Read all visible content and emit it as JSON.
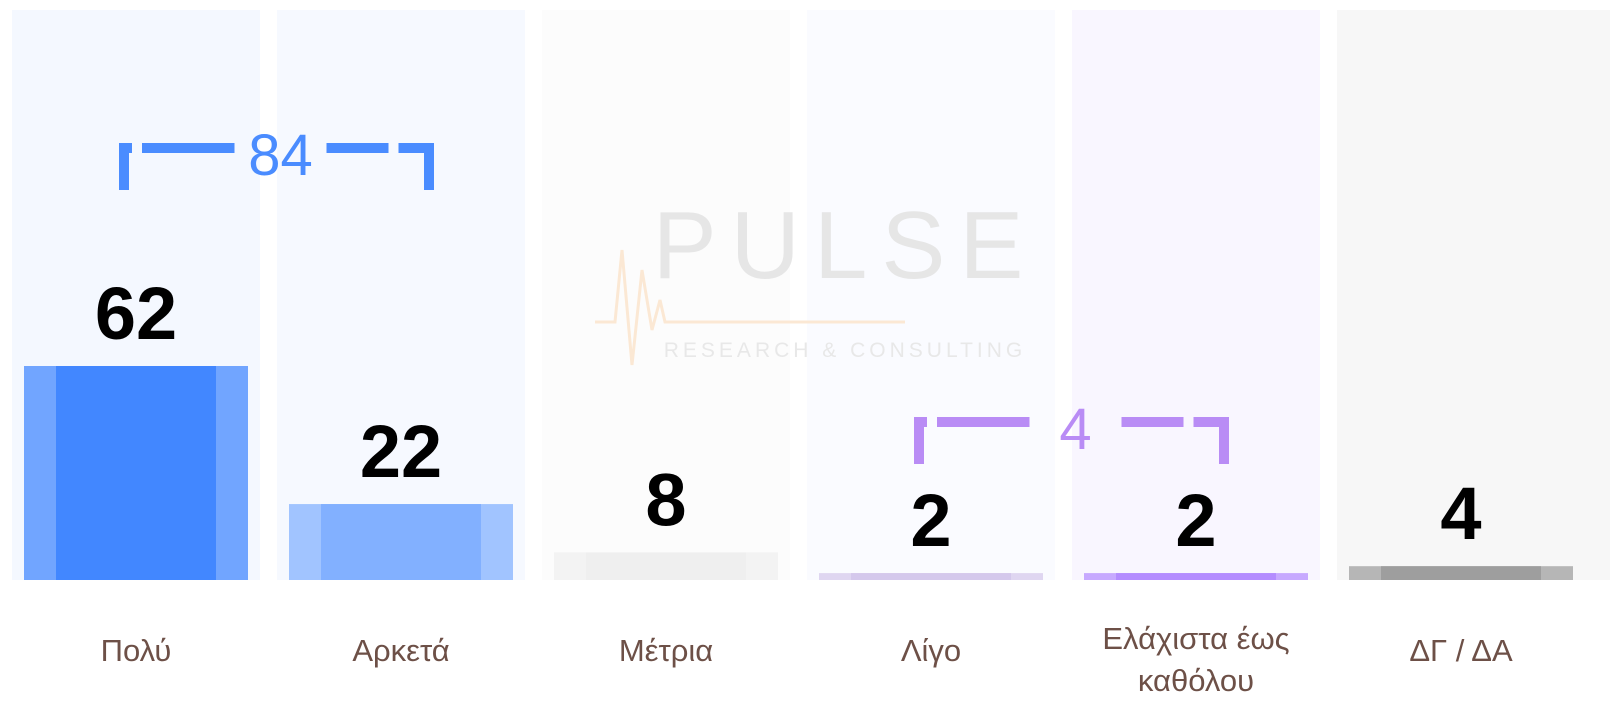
{
  "chart_data": {
    "type": "bar",
    "categories": [
      "Πολύ",
      "Αρκετά",
      "Μέτρια",
      "Λίγο",
      "Ελάχιστα έως καθόλου",
      "ΔΓ / ΔΑ"
    ],
    "values": [
      62,
      22,
      8,
      2,
      2,
      4
    ],
    "colors": [
      "#4287ff",
      "#82b0ff",
      "#efefef",
      "#d4c8ec",
      "#b48cff",
      "#9e9e9e"
    ],
    "annotations": [
      {
        "value": 84,
        "color": "#4a8cff"
      },
      {
        "value": 4,
        "color": "#b98cf5"
      }
    ],
    "watermark": {
      "title": "PULSE",
      "subtitle": "RESEARCH & CONSULTING"
    }
  }
}
